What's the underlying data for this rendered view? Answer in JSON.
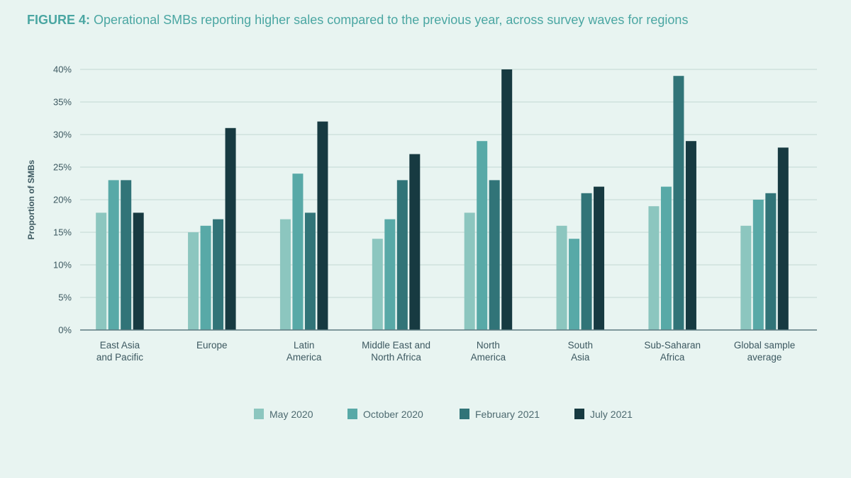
{
  "title": {
    "prefix": "FIGURE 4:",
    "text": "Operational SMBs reporting higher sales compared to the previous year, across survey waves for regions"
  },
  "chart_data": {
    "type": "bar",
    "title": "FIGURE 4: Operational SMBs reporting higher sales compared to the previous year, across survey waves for regions",
    "xlabel": "",
    "ylabel": "Proportion of SMBs",
    "ylim": [
      0,
      40
    ],
    "yticks": [
      0,
      5,
      10,
      15,
      20,
      25,
      30,
      35,
      40
    ],
    "ytick_labels": [
      "0%",
      "5%",
      "10%",
      "15%",
      "20%",
      "25%",
      "30%",
      "35%",
      "40%"
    ],
    "grid": true,
    "legend_position": "bottom",
    "categories": [
      [
        "East Asia",
        "and Pacific"
      ],
      [
        "Europe"
      ],
      [
        "Latin",
        "America"
      ],
      [
        "Middle East and",
        "North Africa"
      ],
      [
        "North",
        "America"
      ],
      [
        "South",
        "Asia"
      ],
      [
        "Sub-Saharan",
        "Africa"
      ],
      [
        "Global sample",
        "average"
      ]
    ],
    "series": [
      {
        "name": "May 2020",
        "color": "#8cc6bf",
        "values": [
          18,
          15,
          17,
          14,
          18,
          16,
          19,
          16
        ]
      },
      {
        "name": "October 2020",
        "color": "#58a9a7",
        "values": [
          23,
          16,
          24,
          17,
          29,
          14,
          22,
          20
        ]
      },
      {
        "name": "February 2021",
        "color": "#317478",
        "values": [
          23,
          17,
          18,
          23,
          23,
          21,
          39,
          21
        ]
      },
      {
        "name": "July 2021",
        "color": "#173a41",
        "values": [
          18,
          31,
          32,
          27,
          40,
          22,
          29,
          28
        ]
      }
    ]
  }
}
